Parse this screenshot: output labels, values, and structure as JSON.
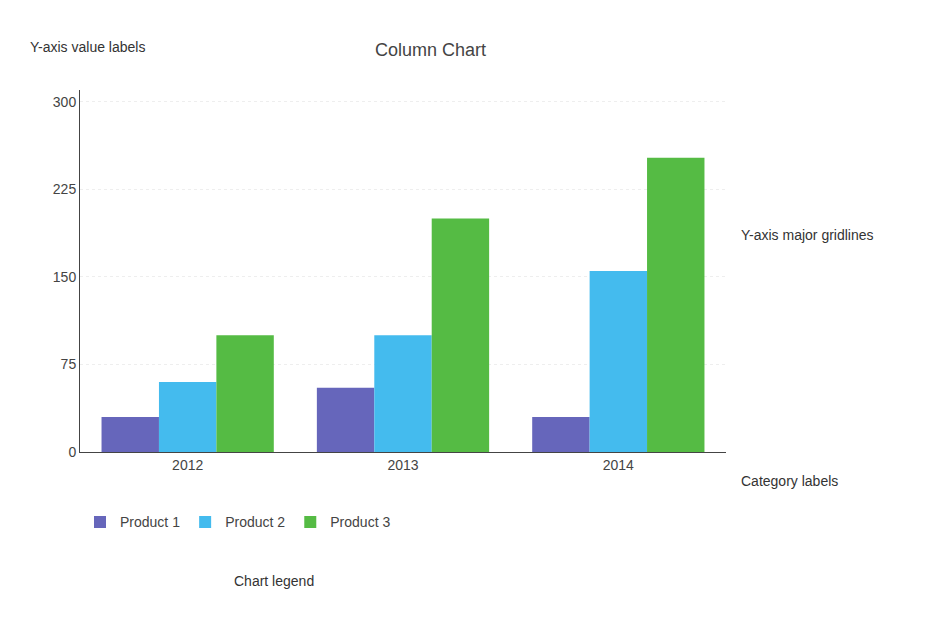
{
  "chart_data": {
    "type": "bar",
    "title": "Column Chart",
    "categories": [
      "2012",
      "2013",
      "2014"
    ],
    "series": [
      {
        "name": "Product 1",
        "color": "#6666bb",
        "values": [
          30,
          55,
          30
        ]
      },
      {
        "name": "Product 2",
        "color": "#44bbee",
        "values": [
          60,
          100,
          155
        ]
      },
      {
        "name": "Product 3",
        "color": "#55bb44",
        "values": [
          100,
          200,
          252
        ]
      }
    ],
    "ylim": [
      0,
      310
    ],
    "yticks": [
      0,
      75,
      150,
      225,
      300
    ],
    "grid": true,
    "annotations": [
      "Y-axis value labels",
      "Y-axis major gridlines",
      "Category labels",
      "Chart legend"
    ]
  }
}
